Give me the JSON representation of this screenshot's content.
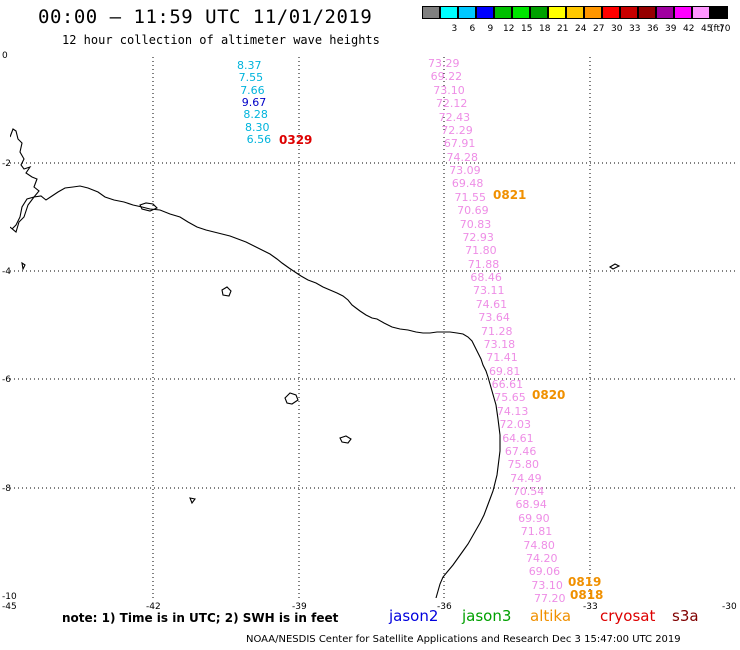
{
  "header": {
    "title": "00:00 – 11:59 UTC 11/01/2019",
    "subtitle": "12 hour collection of altimeter wave heights"
  },
  "legend": {
    "unit": "(ft)",
    "bins": [
      {
        "label": "",
        "color": "#808080"
      },
      {
        "label": "3",
        "color": "#00ffff"
      },
      {
        "label": "6",
        "color": "#00c8ff"
      },
      {
        "label": "9",
        "color": "#0000ff"
      },
      {
        "label": "12",
        "color": "#00c000"
      },
      {
        "label": "15",
        "color": "#00e600"
      },
      {
        "label": "18",
        "color": "#00a000"
      },
      {
        "label": "21",
        "color": "#ffff00"
      },
      {
        "label": "24",
        "color": "#ffc800"
      },
      {
        "label": "27",
        "color": "#ff9600"
      },
      {
        "label": "30",
        "color": "#ff0000"
      },
      {
        "label": "33",
        "color": "#c80000"
      },
      {
        "label": "36",
        "color": "#960000"
      },
      {
        "label": "39",
        "color": "#a000a0"
      },
      {
        "label": "42",
        "color": "#ff00ff"
      },
      {
        "label": "45",
        "color": "#ff96ff"
      },
      {
        "label": "70",
        "color": "#000000"
      }
    ]
  },
  "axes": {
    "x_ticks": [
      "-45",
      "-42",
      "-39",
      "-36",
      "-33",
      "-30"
    ],
    "y_ticks": [
      "0",
      "-2",
      "-4",
      "-6",
      "-8",
      "-10"
    ]
  },
  "observations": {
    "west_track": [
      {
        "value": "8.37",
        "color": "#00b4dc"
      },
      {
        "value": "7.55",
        "color": "#00b4dc"
      },
      {
        "value": "7.66",
        "color": "#00b4dc"
      },
      {
        "value": "9.67",
        "color": "#0000c8"
      },
      {
        "value": "8.28",
        "color": "#00b4dc"
      },
      {
        "value": "8.30",
        "color": "#00b4dc"
      },
      {
        "value": "6.56",
        "color": "#00b4dc"
      }
    ],
    "east_track": [
      "73.29",
      "69.22",
      "73.10",
      "72.12",
      "72.43",
      "72.29",
      "67.91",
      "74.28",
      "73.09",
      "69.48",
      "71.55",
      "70.69",
      "70.83",
      "72.93",
      "71.80",
      "71.88",
      "68.46",
      "73.11",
      "74.61",
      "73.64",
      "71.28",
      "73.18",
      "71.41",
      "69.81",
      "66.61",
      "75.65",
      "74.13",
      "72.03",
      "64.61",
      "67.46",
      "75.80",
      "74.49",
      "70.54",
      "68.94",
      "69.90",
      "71.81",
      "74.80",
      "74.20",
      "69.06",
      "73.10",
      "77.20"
    ],
    "east_color": "#ee8ee6",
    "pass_labels": [
      {
        "text": "0329",
        "color": "#dd0000"
      },
      {
        "text": "0821",
        "color": "#f09000"
      },
      {
        "text": "0820",
        "color": "#f09000"
      },
      {
        "text": "0819",
        "color": "#f09000"
      },
      {
        "text": "0818",
        "color": "#f09000"
      }
    ]
  },
  "note": "note: 1) Time is in UTC; 2) SWH is in feet",
  "satellites": [
    {
      "name": "jason2",
      "color": "#0000dd"
    },
    {
      "name": "jason3",
      "color": "#00a000"
    },
    {
      "name": "altika",
      "color": "#f09000"
    },
    {
      "name": "cryosat",
      "color": "#dd0000"
    },
    {
      "name": "s3a",
      "color": "#800000"
    }
  ],
  "footer": "NOAA/NESDIS Center for Satellite Applications and Research   Dec  3 15:47:00 UTC 2019"
}
